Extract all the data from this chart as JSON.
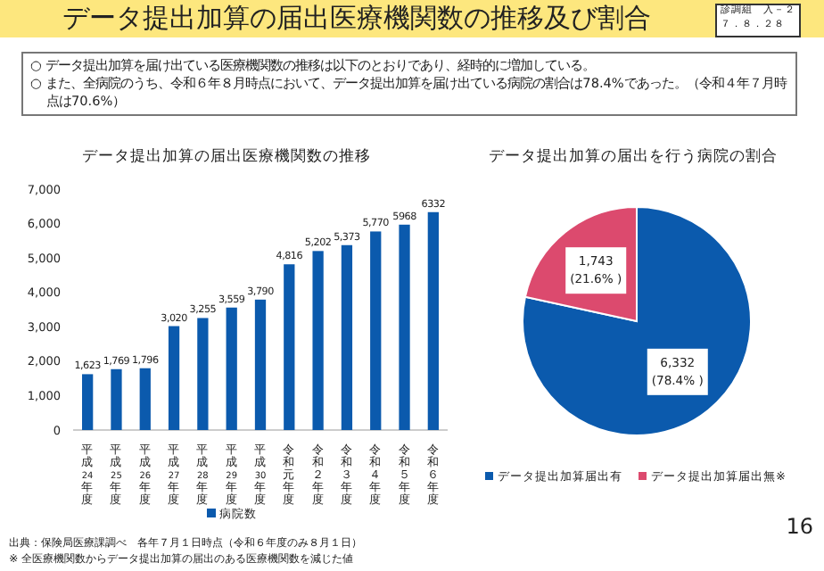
{
  "chart_data": [
    {
      "type": "other",
      "title": "データ提出加算の届出医療機関数の推移及び割合",
      "annotations": [
        "診調組　入－２",
        "７．８．２８",
        "○ データ提出加算を届け出ている医療機関数の推移は以下のとおりであり、経時的に増加している。",
        "○ また、全病院のうち、令和６年８月時点において、データ提出加算を届け出ている病院の割合は78.4%であった。（令和４年７月時点は70.6%）",
        "16"
      ]
    },
    {
      "type": "bar",
      "title": "データ提出加算の届出医療機関数の推移",
      "categories": [
        "平成24年度",
        "平成25年度",
        "平成26年度",
        "平成27年度",
        "平成28年度",
        "平成29年度",
        "平成30年度",
        "令和元年度",
        "令和２年度",
        "令和３年度",
        "令和４年度",
        "令和５年度",
        "令和６年度"
      ],
      "series": [
        {
          "name": "病院数",
          "color": "#0b5aad",
          "values": [
            1623,
            1769,
            1796,
            3020,
            3255,
            3559,
            3790,
            4816,
            5202,
            5373,
            5770,
            5968,
            6332
          ],
          "value_labels": [
            "1,623",
            "1,769",
            "1,796",
            "3,020",
            "3,255",
            "3,559",
            "3,790",
            "4,816",
            "5,202",
            "5,373",
            "5,770",
            "5968",
            "6332"
          ]
        }
      ],
      "ylim": [
        0,
        7000
      ],
      "yticks": [
        0,
        {
          "value": 1000,
          "label": "1,000"
        },
        {
          "value": 2000,
          "label": "2,000"
        },
        {
          "value": 3000,
          "label": "3,000"
        },
        {
          "value": 4000,
          "label": "4,000"
        },
        {
          "value": 5000,
          "label": "5,000"
        },
        {
          "value": 6000,
          "label": "6,000"
        },
        {
          "value": 7000,
          "label": "7,000"
        }
      ],
      "legend": "bottom",
      "annotations": [
        "出典：保険局医療課調べ　各年７月１日時点（令和６年度のみ８月１日）",
        "※ 全医療機関数からデータ提出加算の届出のある医療機関数を減じた値"
      ]
    },
    {
      "type": "pie",
      "title": "データ提出加算の届出を行う病院の割合",
      "categories": [
        "データ提出加算届出有",
        "データ提出加算届出無※"
      ],
      "values": [
        6332,
        1743
      ],
      "colors": [
        "#0b5aad",
        "#dc4a6e"
      ],
      "value_labels": [
        "6,332\n(78.4% )",
        "1,743\n(21.6% )"
      ],
      "legend": "bottom"
    }
  ]
}
